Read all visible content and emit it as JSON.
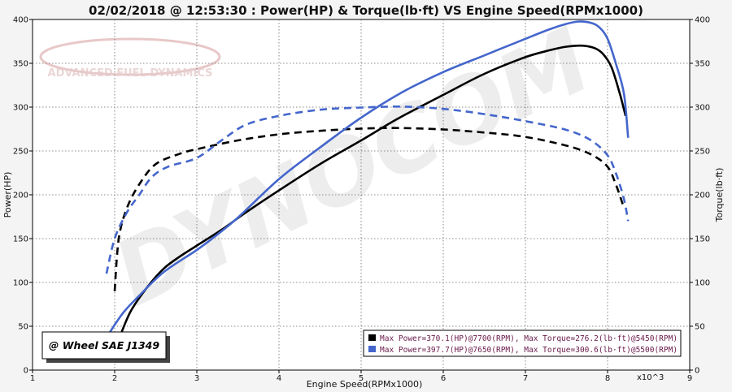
{
  "chart_data": {
    "type": "line",
    "title": "02/02/2018 @ 12:53:30 : Power(HP) & Torque(lb·ft) VS Engine Speed(RPMx1000)",
    "xlabel": "Engine Speed(RPMx1000)",
    "x_multiplier": "x10^3",
    "ylabel_left": "Power(HP)",
    "ylabel_right": "Torque(lb·ft)",
    "xlim": [
      1,
      9
    ],
    "ylim": [
      0,
      400
    ],
    "x_ticks": [
      "1",
      "2",
      "3",
      "4",
      "5",
      "6",
      "7",
      "8",
      "9"
    ],
    "y_ticks": [
      "0",
      "50",
      "100",
      "150",
      "200",
      "250",
      "300",
      "350",
      "400"
    ],
    "grid": true,
    "badge": "@ Wheel SAE J1349",
    "watermark_logo": "ADVANCED FUEL DYNAMICS",
    "watermark_text": "DYNOCOM",
    "legend_position": "bottom-right",
    "colors": {
      "black": "#000000",
      "blue": "#4466cc"
    },
    "series": [
      {
        "name": "Max Power=370.1(HP)@7700(RPM), Max Torque=276.2(lb·ft)@5450(RPM)",
        "color": "#000000",
        "power": [
          [
            2.07,
            40
          ],
          [
            2.2,
            68
          ],
          [
            2.4,
            95
          ],
          [
            2.6,
            116
          ],
          [
            2.8,
            130
          ],
          [
            3.0,
            142
          ],
          [
            3.3,
            160
          ],
          [
            3.6,
            180
          ],
          [
            4.0,
            205
          ],
          [
            4.5,
            235
          ],
          [
            5.0,
            262
          ],
          [
            5.45,
            287
          ],
          [
            6.0,
            314
          ],
          [
            6.5,
            338
          ],
          [
            7.0,
            357
          ],
          [
            7.3,
            365
          ],
          [
            7.5,
            369
          ],
          [
            7.7,
            370.1
          ],
          [
            7.85,
            367
          ],
          [
            7.95,
            360
          ],
          [
            8.05,
            345
          ],
          [
            8.15,
            315
          ],
          [
            8.22,
            290
          ]
        ],
        "torque": [
          [
            2.0,
            90
          ],
          [
            2.05,
            150
          ],
          [
            2.15,
            185
          ],
          [
            2.3,
            212
          ],
          [
            2.5,
            235
          ],
          [
            2.8,
            247
          ],
          [
            3.0,
            252
          ],
          [
            3.5,
            262
          ],
          [
            4.0,
            269
          ],
          [
            4.5,
            273
          ],
          [
            5.0,
            275.5
          ],
          [
            5.45,
            276.2
          ],
          [
            6.0,
            274.5
          ],
          [
            6.5,
            271
          ],
          [
            7.0,
            266
          ],
          [
            7.5,
            256
          ],
          [
            7.8,
            246
          ],
          [
            8.0,
            232
          ],
          [
            8.1,
            212
          ],
          [
            8.2,
            185
          ]
        ]
      },
      {
        "name": "Max Power=397.7(HP)@7650(RPM), Max Torque=300.6(lb·ft)@5500(RPM)",
        "color": "#4466cc",
        "power": [
          [
            1.92,
            40
          ],
          [
            2.1,
            65
          ],
          [
            2.3,
            85
          ],
          [
            2.6,
            112
          ],
          [
            3.0,
            137
          ],
          [
            3.2,
            151
          ],
          [
            3.5,
            174
          ],
          [
            4.0,
            218
          ],
          [
            4.5,
            254
          ],
          [
            5.0,
            288
          ],
          [
            5.5,
            317
          ],
          [
            6.0,
            340
          ],
          [
            6.5,
            359
          ],
          [
            7.0,
            378
          ],
          [
            7.3,
            389
          ],
          [
            7.5,
            395
          ],
          [
            7.65,
            397.7
          ],
          [
            7.8,
            396
          ],
          [
            7.9,
            391
          ],
          [
            8.0,
            378
          ],
          [
            8.1,
            350
          ],
          [
            8.2,
            315
          ],
          [
            8.25,
            265
          ]
        ],
        "torque": [
          [
            1.9,
            110
          ],
          [
            2.0,
            150
          ],
          [
            2.15,
            180
          ],
          [
            2.3,
            200
          ],
          [
            2.45,
            220
          ],
          [
            2.65,
            232
          ],
          [
            3.0,
            242
          ],
          [
            3.3,
            262
          ],
          [
            3.6,
            280
          ],
          [
            4.0,
            290
          ],
          [
            4.5,
            297
          ],
          [
            5.0,
            299.5
          ],
          [
            5.5,
            300.6
          ],
          [
            6.0,
            298
          ],
          [
            6.5,
            292
          ],
          [
            7.0,
            284
          ],
          [
            7.5,
            274
          ],
          [
            7.8,
            262
          ],
          [
            8.0,
            245
          ],
          [
            8.1,
            225
          ],
          [
            8.2,
            195
          ],
          [
            8.25,
            170
          ]
        ]
      }
    ]
  }
}
